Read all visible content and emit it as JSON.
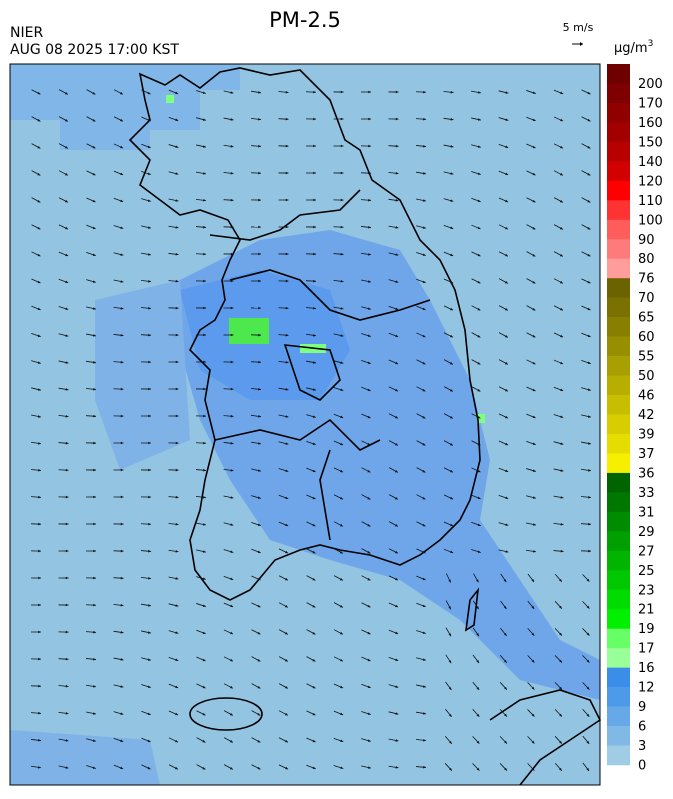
{
  "header": {
    "agency": "NIER",
    "datetime": "AUG 08 2025 17:00 KST",
    "title": "PM-2.5",
    "wind_scale": "5 m/s",
    "unit": "μg/m",
    "unit_sup": "3"
  },
  "colorbar": {
    "labels": [
      "200",
      "170",
      "160",
      "150",
      "140",
      "120",
      "110",
      "100",
      "90",
      "80",
      "76",
      "70",
      "65",
      "60",
      "55",
      "50",
      "46",
      "42",
      "39",
      "37",
      "36",
      "33",
      "31",
      "29",
      "27",
      "25",
      "23",
      "21",
      "19",
      "17",
      "16",
      "12",
      "9",
      "6",
      "3",
      "0"
    ],
    "colors": [
      "#6e0000",
      "#7f0000",
      "#900000",
      "#a20000",
      "#b80000",
      "#d20000",
      "#ff0000",
      "#ff3333",
      "#ff5c5c",
      "#ff7a7a",
      "#ff9d9d",
      "#6b6300",
      "#7a7100",
      "#887f00",
      "#978e00",
      "#a89f00",
      "#b8ae00",
      "#c8be00",
      "#d8cd00",
      "#e6dd00",
      "#f6f000",
      "#006400",
      "#007800",
      "#008c00",
      "#00a000",
      "#00b400",
      "#00c800",
      "#00dc00",
      "#00f000",
      "#66ff66",
      "#99ff99",
      "#3a8ee8",
      "#4d9ae8",
      "#66a8e8",
      "#80b8e6",
      "#a0cce6"
    ]
  }
}
